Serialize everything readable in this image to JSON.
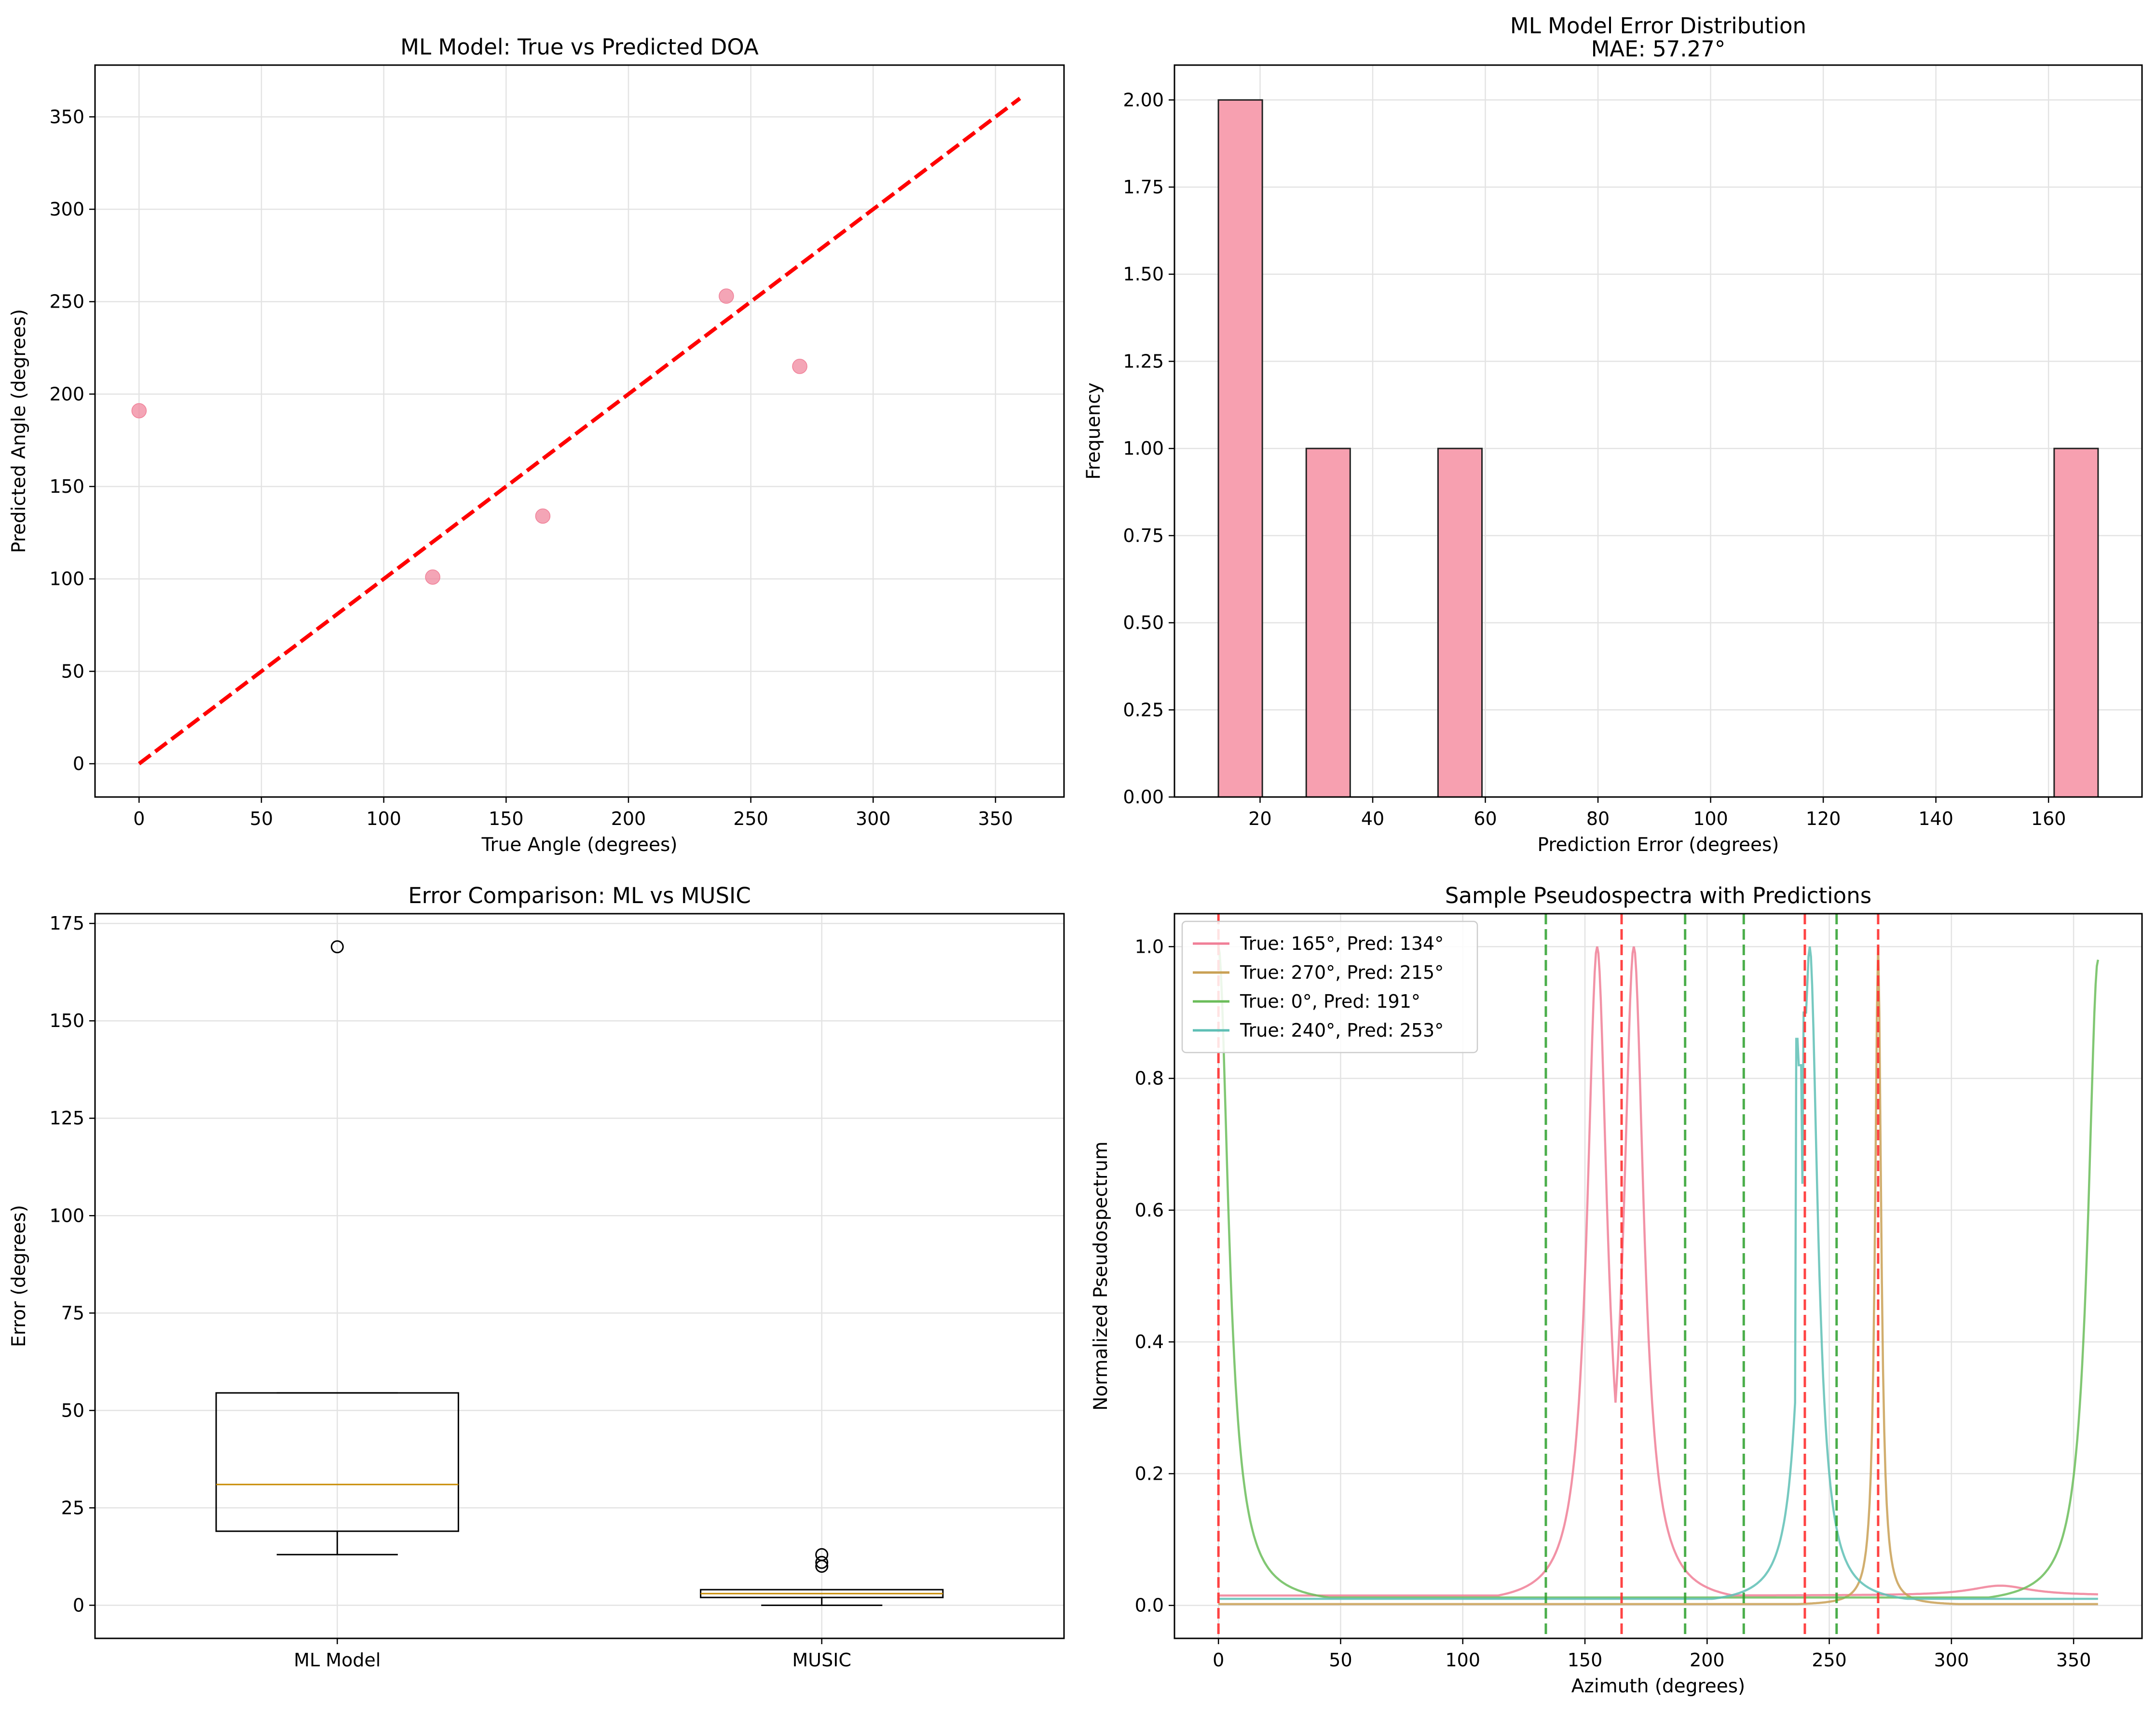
{
  "chart_data": [
    {
      "type": "scatter",
      "title": "ML Model: True vs Predicted DOA",
      "xlabel": "True Angle (degrees)",
      "ylabel": "Predicted Angle (degrees)",
      "xlim": [
        -18,
        378
      ],
      "ylim": [
        -18,
        378
      ],
      "xticks": [
        0,
        50,
        100,
        150,
        200,
        250,
        300,
        350
      ],
      "yticks": [
        0,
        50,
        100,
        150,
        200,
        250,
        300,
        350
      ],
      "grid": true,
      "points": [
        {
          "x": 0,
          "y": 191
        },
        {
          "x": 120,
          "y": 101
        },
        {
          "x": 165,
          "y": 134
        },
        {
          "x": 240,
          "y": 253
        },
        {
          "x": 270,
          "y": 215
        }
      ],
      "reference_line": {
        "x": [
          0,
          360
        ],
        "y": [
          0,
          360
        ],
        "color": "#ff0000",
        "style": "dashed"
      },
      "point_color": "#f07f97"
    },
    {
      "type": "bar",
      "title": "ML Model Error Distribution",
      "subtitle": "MAE: 57.27°",
      "xlabel": "Prediction Error (degrees)",
      "ylabel": "Frequency",
      "xlim": [
        4.8,
        176.6
      ],
      "ylim": [
        0,
        2.1
      ],
      "xticks": [
        20,
        40,
        60,
        80,
        100,
        120,
        140,
        160
      ],
      "yticks": [
        0.0,
        0.25,
        0.5,
        0.75,
        1.0,
        1.25,
        1.5,
        1.75,
        2.0
      ],
      "ytick_labels": [
        "0.00",
        "0.25",
        "0.50",
        "0.75",
        "1.00",
        "1.25",
        "1.50",
        "1.75",
        "2.00"
      ],
      "grid": true,
      "bins": [
        {
          "x0": 12.6,
          "x1": 20.4,
          "count": 2
        },
        {
          "x0": 28.2,
          "x1": 36.0,
          "count": 1
        },
        {
          "x0": 51.6,
          "x1": 59.4,
          "count": 1
        },
        {
          "x0": 161.0,
          "x1": 168.8,
          "count": 1
        }
      ],
      "bar_color": "#f7a0b0"
    },
    {
      "type": "box",
      "title": "Error Comparison: ML vs MUSIC",
      "ylabel": "Error (degrees)",
      "categories": [
        "ML Model",
        "MUSIC"
      ],
      "ylim": [
        -8.5,
        177.5
      ],
      "yticks": [
        0,
        25,
        50,
        75,
        100,
        125,
        150,
        175
      ],
      "grid": true,
      "boxes": [
        {
          "name": "ML Model",
          "whisker_low": 13,
          "q1": 19,
          "median": 31,
          "q3": 54.5,
          "whisker_high": 54.5,
          "outliers": [
            169
          ]
        },
        {
          "name": "MUSIC",
          "whisker_low": 0,
          "q1": 2,
          "median": 3,
          "q3": 4,
          "whisker_high": 4,
          "outliers": [
            10,
            11,
            13
          ]
        }
      ]
    },
    {
      "type": "line",
      "title": "Sample Pseudospectra with Predictions",
      "xlabel": "Azimuth (degrees)",
      "ylabel": "Normalized Pseudospectrum",
      "xlim": [
        -18,
        378
      ],
      "ylim": [
        -0.05,
        1.05
      ],
      "xticks": [
        0,
        50,
        100,
        150,
        200,
        250,
        300,
        350
      ],
      "yticks": [
        0.0,
        0.2,
        0.4,
        0.6,
        0.8,
        1.0
      ],
      "ytick_labels": [
        "0.0",
        "0.2",
        "0.4",
        "0.6",
        "0.8",
        "1.0"
      ],
      "grid": true,
      "legend_position": "top-left",
      "series": [
        {
          "name": "True: 165°, Pred: 134°",
          "color": "#f07f97",
          "peaks": [
            [
              155,
              1.0,
              0.017,
              5
            ],
            [
              170,
              1.0,
              0.017,
              5
            ]
          ],
          "base": 0.015,
          "drift": [
            [
              320,
              0.015,
              15
            ]
          ]
        },
        {
          "name": "True: 270°, Pred: 215°",
          "color": "#c9a055",
          "peaks": [
            [
              270,
              1.0,
              0.002,
              1.5
            ]
          ],
          "base": 0.002
        },
        {
          "name": "True: 0°, Pred: 191°",
          "color": "#6bbd5a",
          "peaks": [
            [
              0,
              1.0,
              0.005,
              5
            ],
            [
              360,
              0.98,
              0.005,
              5
            ]
          ],
          "base": 0.012
        },
        {
          "name": "True: 240°, Pred: 253°",
          "color": "#5ebfb5",
          "peaks": [
            [
              242,
              1.0,
              0.012,
              4
            ]
          ],
          "base": 0.01,
          "notch": [
            [
              237,
              0.86
            ],
            [
              238,
              0.82
            ],
            [
              240,
              0.9
            ]
          ]
        }
      ],
      "vlines_true": {
        "color": "#ff3030",
        "x": [
          0,
          165,
          240,
          270
        ]
      },
      "vlines_pred": {
        "color": "#2ca02c",
        "x": [
          134,
          191,
          215,
          253
        ]
      }
    }
  ]
}
